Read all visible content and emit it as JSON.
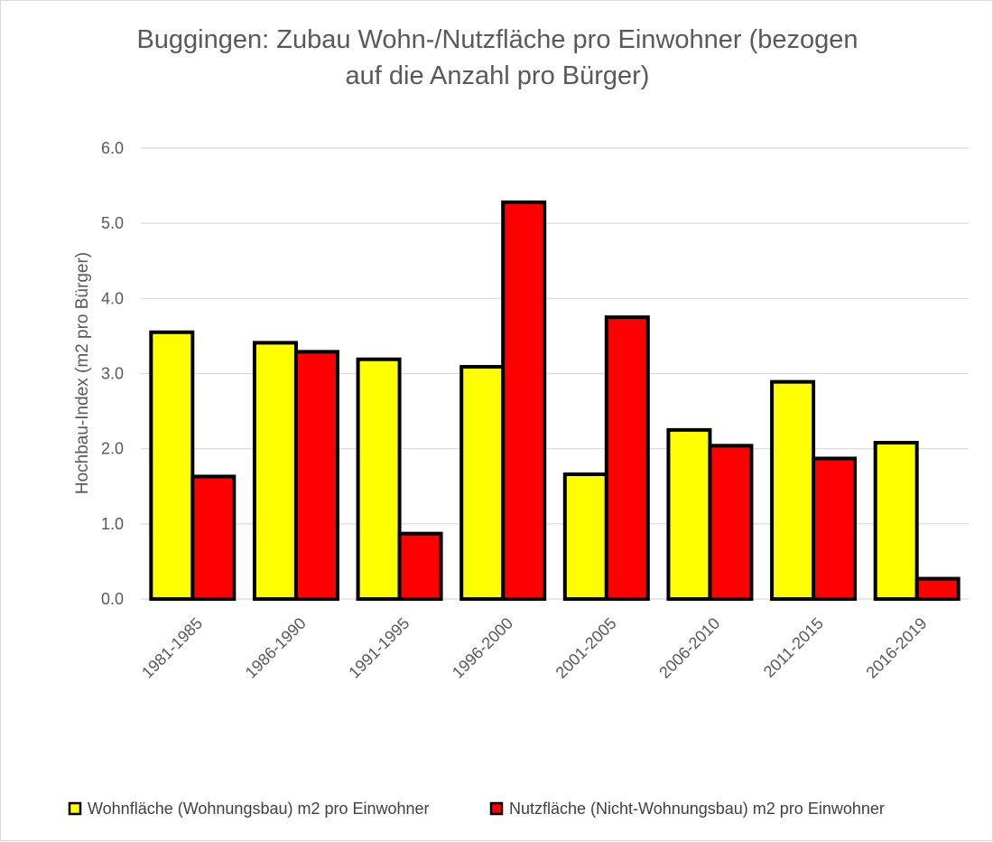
{
  "chart_data": {
    "type": "bar",
    "title": "Buggingen: Zubau Wohn-/Nutzfläche pro Einwohner (bezogen auf die Anzahl pro Bürger)",
    "title_lines": [
      "Buggingen: Zubau Wohn-/Nutzfläche pro Einwohner (bezogen",
      "auf die Anzahl pro Bürger)"
    ],
    "xlabel": "",
    "ylabel": "Hochbau-Index (m2 pro Bürger)",
    "ylim": [
      0,
      6
    ],
    "yticks": [
      "0.0",
      "1.0",
      "2.0",
      "3.0",
      "4.0",
      "5.0",
      "6.0"
    ],
    "grid": true,
    "legend_position": "bottom",
    "categories": [
      "1981-1985",
      "1986-1990",
      "1991-1995",
      "1996-2000",
      "2001-2005",
      "2006-2010",
      "2011-2015",
      "2016-2019"
    ],
    "series": [
      {
        "name": "Wohnfläche (Wohnungsbau) m2 pro Einwohner",
        "color": "#ffff00",
        "values": [
          3.55,
          3.41,
          3.19,
          3.09,
          1.66,
          2.25,
          2.89,
          2.08
        ]
      },
      {
        "name": "Nutzfläche (Nicht-Wohnungsbau) m2 pro Einwohner",
        "color": "#ff0000",
        "values": [
          1.63,
          3.29,
          0.87,
          5.28,
          3.75,
          2.04,
          1.87,
          0.27
        ]
      }
    ]
  },
  "colors": {
    "gridline": "#d9d9d9",
    "bar_outline": "#000000",
    "text": "#595959"
  }
}
